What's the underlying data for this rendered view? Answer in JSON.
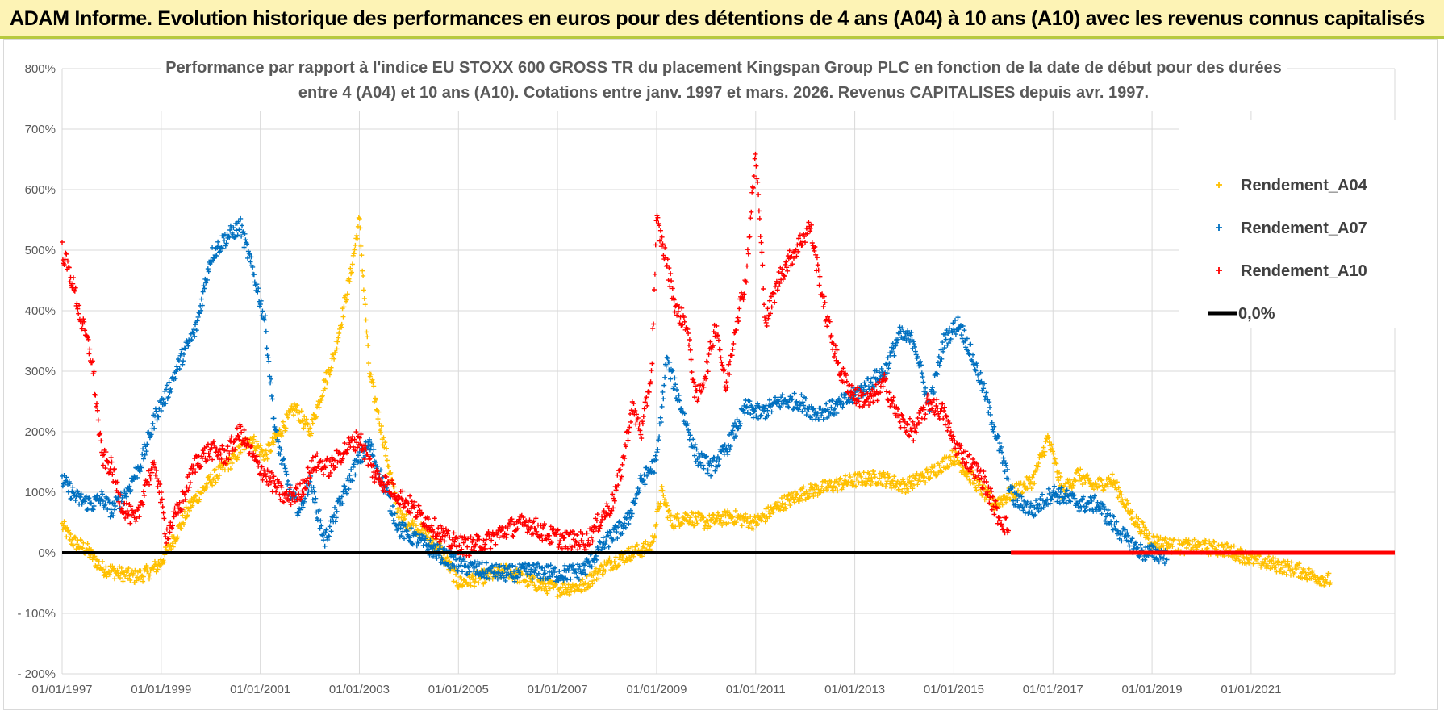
{
  "banner": {
    "title": "ADAM Informe. Evolution historique des performances en euros pour des détentions de 4 ans (A04) à 10 ans (A10) avec les revenus connus capitalisés"
  },
  "chart_data": {
    "type": "scatter",
    "title_line1": "Performance par rapport à l'indice EU STOXX 600 GROSS TR  du placement Kingspan Group PLC en fonction de la date de début pour des durées",
    "title_line2": "entre 4 (A04) et 10 ans (A10).  Cotations entre janv. 1997 et mars. 2026. Revenus CAPITALISES depuis avr. 1997.",
    "ylim": [
      -200,
      800
    ],
    "xlim": [
      1997.0,
      2023.9
    ],
    "y_ticks": [
      {
        "v": 800,
        "label": "800%"
      },
      {
        "v": 700,
        "label": "700%"
      },
      {
        "v": 600,
        "label": "600%"
      },
      {
        "v": 500,
        "label": "500%"
      },
      {
        "v": 400,
        "label": "400%"
      },
      {
        "v": 300,
        "label": "300%"
      },
      {
        "v": 200,
        "label": "200%"
      },
      {
        "v": 100,
        "label": "100%"
      },
      {
        "v": 0,
        "label": "0%"
      },
      {
        "v": -100,
        "label": "- 100%"
      },
      {
        "v": -200,
        "label": "- 200%"
      }
    ],
    "x_ticks": [
      {
        "v": 1997,
        "label": "01/01/1997"
      },
      {
        "v": 1999,
        "label": "01/01/1999"
      },
      {
        "v": 2001,
        "label": "01/01/2001"
      },
      {
        "v": 2003,
        "label": "01/01/2003"
      },
      {
        "v": 2005,
        "label": "01/01/2005"
      },
      {
        "v": 2007,
        "label": "01/01/2007"
      },
      {
        "v": 2009,
        "label": "01/01/2009"
      },
      {
        "v": 2011,
        "label": "01/01/2011"
      },
      {
        "v": 2013,
        "label": "01/01/2013"
      },
      {
        "v": 2015,
        "label": "01/01/2015"
      },
      {
        "v": 2017,
        "label": "01/01/2017"
      },
      {
        "v": 2019,
        "label": "01/01/2019"
      },
      {
        "v": 2021,
        "label": "01/01/2021"
      }
    ],
    "legend": {
      "position": "top-right",
      "items": [
        {
          "label": "Rendement_A04",
          "color": "#FFC000",
          "kind": "marker"
        },
        {
          "label": "Rendement_A07",
          "color": "#0070C0",
          "kind": "marker"
        },
        {
          "label": "Rendement_A10",
          "color": "#FF0000",
          "kind": "marker"
        },
        {
          "label": "0,0%",
          "color": "#000000",
          "kind": "line"
        }
      ]
    },
    "series": [
      {
        "name": "Rendement_A04",
        "color": "#FFC000",
        "x": [
          1997.0,
          1997.2,
          1997.5,
          1997.8,
          1998.2,
          1998.5,
          1998.8,
          1999.0,
          1999.3,
          1999.6,
          2000.0,
          2000.4,
          2000.8,
          2001.1,
          2001.4,
          2001.7,
          2002.0,
          2002.3,
          2002.5,
          2002.8,
          2003.0,
          2003.2,
          2003.5,
          2003.8,
          2004.2,
          2004.6,
          2005.0,
          2005.5,
          2006.0,
          2006.5,
          2007.0,
          2007.5,
          2008.0,
          2008.5,
          2008.9,
          2009.1,
          2009.3,
          2009.6,
          2010.0,
          2010.5,
          2011.0,
          2011.5,
          2012.0,
          2012.5,
          2013.0,
          2013.5,
          2014.0,
          2014.5,
          2015.0,
          2015.4,
          2015.8,
          2016.2,
          2016.6,
          2016.9,
          2017.2,
          2017.5,
          2017.8,
          2018.2,
          2018.6,
          2019.0,
          2019.5,
          2020.0,
          2020.5,
          2021.0,
          2021.5,
          2022.0,
          2022.3,
          2022.6
        ],
        "y": [
          45,
          20,
          5,
          -25,
          -35,
          -40,
          -30,
          -15,
          30,
          80,
          120,
          150,
          190,
          160,
          200,
          240,
          200,
          280,
          330,
          450,
          550,
          300,
          180,
          60,
          40,
          10,
          -50,
          -40,
          -30,
          -50,
          -60,
          -55,
          -20,
          0,
          10,
          100,
          50,
          60,
          50,
          60,
          50,
          80,
          100,
          110,
          120,
          125,
          110,
          130,
          160,
          120,
          80,
          100,
          120,
          190,
          100,
          130,
          110,
          120,
          60,
          20,
          10,
          10,
          5,
          -10,
          -20,
          -30,
          -40,
          -45
        ],
        "spread": 12
      },
      {
        "name": "Rendement_A07",
        "color": "#0070C0",
        "x": [
          1997.0,
          1997.3,
          1997.6,
          1997.8,
          1998.0,
          1998.3,
          1998.6,
          1998.9,
          1999.1,
          1999.4,
          1999.7,
          2000.0,
          2000.3,
          2000.6,
          2000.9,
          2001.1,
          2001.3,
          2001.6,
          2001.8,
          2002.0,
          2002.3,
          2002.6,
          2002.9,
          2003.2,
          2003.5,
          2003.8,
          2004.2,
          2004.6,
          2005.0,
          2005.5,
          2006.0,
          2006.5,
          2007.0,
          2007.5,
          2008.0,
          2008.4,
          2008.7,
          2009.0,
          2009.2,
          2009.5,
          2009.8,
          2010.1,
          2010.4,
          2010.8,
          2011.1,
          2011.5,
          2011.9,
          2012.2,
          2012.6,
          2013.0,
          2013.3,
          2013.6,
          2013.9,
          2014.2,
          2014.5,
          2014.8,
          2015.1,
          2015.3,
          2015.6,
          2015.9,
          2016.2,
          2016.6,
          2017.0,
          2017.3,
          2017.6,
          2017.9,
          2018.2,
          2018.5,
          2018.8,
          2019.0,
          2019.3
        ],
        "y": [
          120,
          90,
          80,
          90,
          70,
          100,
          150,
          230,
          260,
          320,
          370,
          490,
          520,
          540,
          450,
          380,
          200,
          100,
          70,
          120,
          20,
          80,
          140,
          180,
          110,
          40,
          20,
          0,
          -20,
          -30,
          -35,
          -30,
          -35,
          -30,
          20,
          50,
          120,
          150,
          320,
          240,
          160,
          140,
          170,
          240,
          230,
          250,
          250,
          230,
          240,
          260,
          280,
          300,
          360,
          350,
          240,
          350,
          380,
          340,
          270,
          180,
          90,
          70,
          100,
          90,
          80,
          80,
          50,
          20,
          0,
          0,
          -5
        ],
        "spread": 14
      },
      {
        "name": "Rendement_A10",
        "color": "#FF0000",
        "x": [
          1997.0,
          1997.2,
          1997.4,
          1997.6,
          1997.8,
          1998.0,
          1998.2,
          1998.5,
          1998.7,
          1998.9,
          1999.1,
          1999.4,
          1999.7,
          2000.0,
          2000.3,
          2000.6,
          2000.9,
          2001.2,
          2001.5,
          2001.8,
          2002.1,
          2002.4,
          2002.7,
          2003.0,
          2003.3,
          2003.6,
          2004.0,
          2004.4,
          2004.8,
          2005.2,
          2005.6,
          2006.0,
          2006.4,
          2006.8,
          2007.2,
          2007.6,
          2007.9,
          2008.1,
          2008.3,
          2008.5,
          2008.7,
          2008.9,
          2009.0,
          2009.2,
          2009.4,
          2009.6,
          2009.8,
          2010.0,
          2010.2,
          2010.4,
          2010.6,
          2010.8,
          2011.0,
          2011.2,
          2011.5,
          2011.8,
          2012.1,
          2012.4,
          2012.7,
          2013.0,
          2013.3,
          2013.6,
          2013.9,
          2014.2,
          2014.5,
          2014.8,
          2015.0,
          2015.3,
          2015.6,
          2015.9,
          2016.1
        ],
        "y": [
          500,
          450,
          380,
          320,
          160,
          140,
          80,
          50,
          120,
          140,
          30,
          80,
          150,
          170,
          160,
          200,
          150,
          120,
          90,
          100,
          150,
          140,
          170,
          190,
          130,
          110,
          80,
          50,
          20,
          10,
          20,
          40,
          50,
          30,
          20,
          20,
          60,
          80,
          140,
          240,
          200,
          300,
          550,
          480,
          400,
          380,
          250,
          300,
          380,
          270,
          380,
          450,
          660,
          380,
          460,
          500,
          540,
          400,
          300,
          260,
          250,
          280,
          220,
          200,
          250,
          230,
          180,
          150,
          120,
          60,
          40
        ],
        "spread": 16
      },
      {
        "name": "Rendement_A10_zero",
        "color": "#FF0000",
        "x": [
          2016.15,
          2023.9
        ],
        "y": [
          0,
          0
        ],
        "spread": 0,
        "dense": true
      },
      {
        "name": "0,0%",
        "color": "#000000",
        "x": [
          1997.0,
          2016.15
        ],
        "y": [
          0,
          0
        ],
        "line": true
      }
    ]
  }
}
